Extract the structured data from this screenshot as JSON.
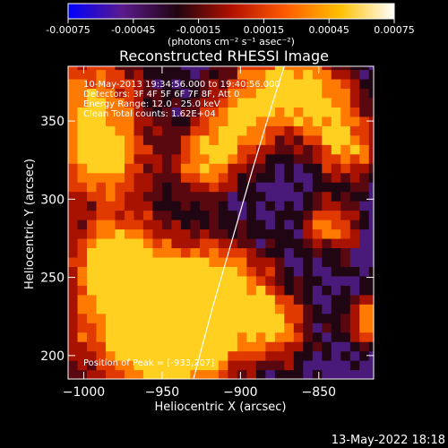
{
  "chart_data": {
    "type": "heatmap",
    "title": "Reconstructed RHESSI Image",
    "xlabel": "Heliocentric X (arcsec)",
    "ylabel": "Heliocentric Y (arcsec)",
    "xlim": [
      -1010,
      -815
    ],
    "ylim": [
      185,
      385
    ],
    "xticks": [
      -1000,
      -950,
      -900,
      -850
    ],
    "yticks": [
      200,
      250,
      300,
      350
    ],
    "colorbar": {
      "range": [
        -0.00075,
        0.00075
      ],
      "ticks": [
        -0.00075,
        -0.00045,
        -0.00015,
        0.00015,
        0.00045,
        0.00075
      ],
      "tick_labels": [
        "-0.00075",
        "-0.00045",
        "-0.00015",
        "0.00015",
        "0.00045",
        "0.00075"
      ],
      "label": "(photons cm⁻² s⁻¹ asec⁻²)",
      "colormap": [
        "#0000ff",
        "#5a1a8c",
        "#200410",
        "#b01000",
        "#ff5a00",
        "#ffc000",
        "#ffffff"
      ]
    },
    "annotations": [
      "10-May-2013 19:34:56.000 to 19:40:56.000",
      "Detectors: 3F 4F 5F 6F 7F 8F, Att 0",
      "Energy Range: 12.0 - 25.0 keV",
      "Clean     Total counts: 1.62E+04"
    ],
    "peak_text": "Position of Peak = [-933,207]",
    "peak": [
      -933,
      207
    ],
    "limb_points": [
      [
        -930,
        185
      ],
      [
        -918,
        230
      ],
      [
        -905,
        275
      ],
      [
        -892,
        320
      ],
      [
        -880,
        360
      ],
      [
        -872,
        385
      ]
    ]
  },
  "footer": {
    "timestamp": "13-May-2022 18:18"
  }
}
